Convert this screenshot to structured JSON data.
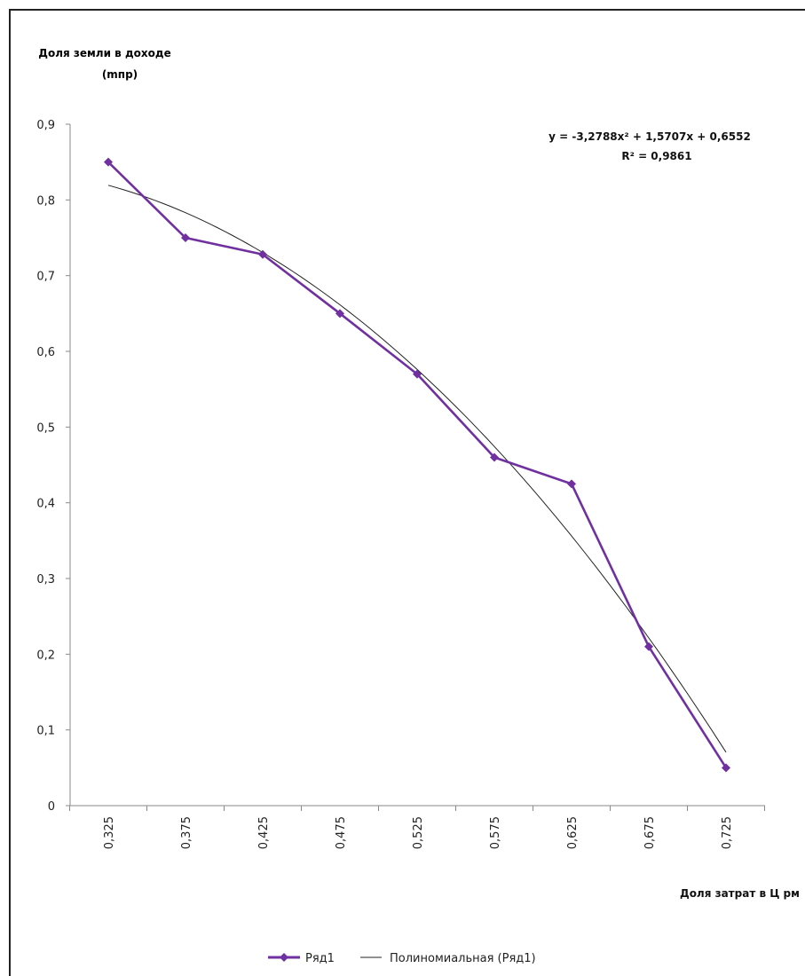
{
  "chart_data": {
    "type": "line",
    "y_title_line1": "Доля земли в доходе",
    "y_title_line2": "(mпр)",
    "xlabel": "Доля затрат в Ц рм",
    "categories": [
      "0,325",
      "0,375",
      "0,425",
      "0,475",
      "0,525",
      "0,575",
      "0,625",
      "0,675",
      "0,725"
    ],
    "x": [
      0.325,
      0.375,
      0.425,
      0.475,
      0.525,
      0.575,
      0.625,
      0.675,
      0.725
    ],
    "y_ticks": [
      "0",
      "0,1",
      "0,2",
      "0,3",
      "0,4",
      "0,5",
      "0,6",
      "0,7",
      "0,8",
      "0,9"
    ],
    "ylim": [
      0,
      0.9
    ],
    "series": [
      {
        "name": "Ряд1",
        "color": "#7030a0",
        "marker": "diamond",
        "values": [
          0.85,
          0.75,
          0.728,
          0.65,
          0.57,
          0.46,
          0.425,
          0.21,
          0.05
        ]
      }
    ],
    "trendline": {
      "name": "Полиномиальная (Ряд1)",
      "type": "polynomial",
      "order": 2,
      "coefficients": {
        "a": -3.2788,
        "b": 1.5707,
        "c": 0.6552
      },
      "equation": "y = -3,2788x² + 1,5707x + 0,6552",
      "r_squared": "R² = 0,9861",
      "color": "#222222"
    },
    "legend_position": "bottom",
    "grid": false
  }
}
